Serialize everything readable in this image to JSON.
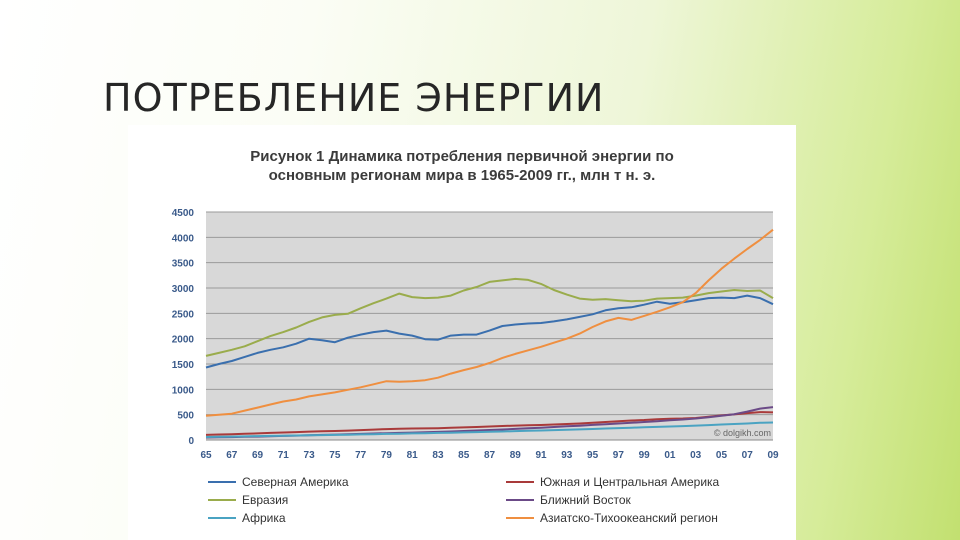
{
  "slide": {
    "title": "ПОТРЕБЛЕНИЕ ЭНЕРГИИ"
  },
  "chart_data": {
    "type": "line",
    "title_lines": [
      "Рисунок 1 Динамика потребления первичной энергии по",
      "основным регионам мира в 1965-2009 гг., млн т н. э."
    ],
    "watermark": "© dolgikh.com",
    "ylim": [
      0,
      4500
    ],
    "yticks": [
      0,
      500,
      1000,
      1500,
      2000,
      2500,
      3000,
      3500,
      4000,
      4500
    ],
    "x": [
      1965,
      1966,
      1967,
      1968,
      1969,
      1970,
      1971,
      1972,
      1973,
      1974,
      1975,
      1976,
      1977,
      1978,
      1979,
      1980,
      1981,
      1982,
      1983,
      1984,
      1985,
      1986,
      1987,
      1988,
      1989,
      1990,
      1991,
      1992,
      1993,
      1994,
      1995,
      1996,
      1997,
      1998,
      1999,
      2000,
      2001,
      2002,
      2003,
      2004,
      2005,
      2006,
      2007,
      2008,
      2009
    ],
    "xticks": [
      "65",
      "67",
      "69",
      "71",
      "73",
      "75",
      "77",
      "79",
      "81",
      "83",
      "85",
      "87",
      "89",
      "91",
      "93",
      "95",
      "97",
      "99",
      "01",
      "03",
      "05",
      "07",
      "09"
    ],
    "grid": true,
    "legend_position": "bottom",
    "series": [
      {
        "name": "Северная Америка",
        "color": "#3a6fae",
        "values": [
          1430,
          1500,
          1560,
          1640,
          1720,
          1780,
          1830,
          1900,
          2000,
          1970,
          1930,
          2020,
          2080,
          2130,
          2160,
          2100,
          2060,
          1990,
          1980,
          2060,
          2080,
          2080,
          2160,
          2250,
          2280,
          2300,
          2310,
          2340,
          2380,
          2430,
          2480,
          2560,
          2600,
          2620,
          2670,
          2730,
          2690,
          2720,
          2760,
          2800,
          2810,
          2800,
          2850,
          2800,
          2680
        ]
      },
      {
        "name": "Южная и Центральная Америка",
        "color": "#a93a3a",
        "values": [
          100,
          108,
          115,
          122,
          130,
          140,
          148,
          156,
          166,
          172,
          178,
          186,
          195,
          205,
          215,
          222,
          226,
          228,
          232,
          240,
          248,
          256,
          266,
          276,
          284,
          290,
          296,
          305,
          315,
          325,
          340,
          355,
          370,
          385,
          395,
          410,
          420,
          425,
          435,
          460,
          485,
          505,
          530,
          550,
          545
        ]
      },
      {
        "name": "Евразия",
        "color": "#9aac4c",
        "values": [
          1660,
          1720,
          1780,
          1850,
          1950,
          2050,
          2130,
          2220,
          2330,
          2420,
          2470,
          2490,
          2600,
          2700,
          2790,
          2890,
          2820,
          2800,
          2810,
          2850,
          2950,
          3020,
          3120,
          3150,
          3180,
          3160,
          3080,
          2960,
          2870,
          2790,
          2770,
          2780,
          2760,
          2740,
          2750,
          2790,
          2800,
          2810,
          2850,
          2900,
          2930,
          2960,
          2940,
          2950,
          2800
        ]
      },
      {
        "name": "Ближний Восток",
        "color": "#6b4a87",
        "values": [
          50,
          54,
          58,
          63,
          68,
          74,
          80,
          86,
          94,
          100,
          106,
          113,
          120,
          128,
          135,
          140,
          146,
          152,
          160,
          168,
          178,
          188,
          198,
          208,
          220,
          232,
          243,
          256,
          270,
          283,
          298,
          312,
          326,
          340,
          355,
          372,
          388,
          405,
          425,
          450,
          480,
          510,
          560,
          620,
          650
        ]
      },
      {
        "name": "Африка",
        "color": "#4aa3c2",
        "values": [
          60,
          64,
          68,
          72,
          76,
          80,
          84,
          88,
          92,
          96,
          100,
          105,
          110,
          115,
          120,
          125,
          130,
          135,
          140,
          145,
          150,
          156,
          162,
          168,
          175,
          182,
          188,
          195,
          202,
          210,
          218,
          226,
          234,
          242,
          250,
          258,
          266,
          275,
          285,
          295,
          305,
          315,
          325,
          340,
          345
        ]
      },
      {
        "name": "Азиатско-Тихоокеанский регион",
        "color": "#ef8f40",
        "values": [
          480,
          500,
          520,
          580,
          640,
          700,
          760,
          800,
          860,
          900,
          940,
          990,
          1040,
          1100,
          1160,
          1150,
          1160,
          1180,
          1230,
          1310,
          1380,
          1440,
          1520,
          1620,
          1700,
          1770,
          1840,
          1920,
          2000,
          2100,
          2230,
          2340,
          2410,
          2370,
          2450,
          2530,
          2620,
          2720,
          2900,
          3150,
          3380,
          3580,
          3770,
          3950,
          4150
        ]
      }
    ]
  }
}
